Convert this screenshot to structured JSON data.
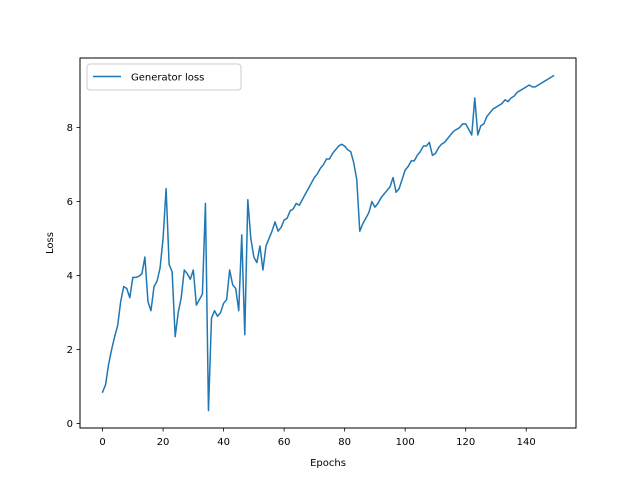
{
  "chart_data": {
    "type": "line",
    "xlabel": "Epochs",
    "ylabel": "Loss",
    "xlim": [
      -7.45,
      156.45
    ],
    "ylim": [
      -0.12,
      9.88
    ],
    "xticks": [
      0,
      20,
      40,
      60,
      80,
      100,
      120,
      140
    ],
    "yticks": [
      0,
      2,
      4,
      6,
      8
    ],
    "grid": false,
    "legend_position": "upper-left",
    "series": [
      {
        "name": "Generator loss",
        "color": "#1f77b4",
        "x": [
          0,
          1,
          2,
          3,
          4,
          5,
          6,
          7,
          8,
          9,
          10,
          11,
          12,
          13,
          14,
          15,
          16,
          17,
          18,
          19,
          20,
          21,
          22,
          23,
          24,
          25,
          26,
          27,
          28,
          29,
          30,
          31,
          32,
          33,
          34,
          35,
          36,
          37,
          38,
          39,
          40,
          41,
          42,
          43,
          44,
          45,
          46,
          47,
          48,
          49,
          50,
          51,
          52,
          53,
          54,
          55,
          56,
          57,
          58,
          59,
          60,
          61,
          62,
          63,
          64,
          65,
          66,
          67,
          68,
          69,
          70,
          71,
          72,
          73,
          74,
          75,
          76,
          77,
          78,
          79,
          80,
          81,
          82,
          83,
          84,
          85,
          86,
          87,
          88,
          89,
          90,
          91,
          92,
          93,
          94,
          95,
          96,
          97,
          98,
          99,
          100,
          101,
          102,
          103,
          104,
          105,
          106,
          107,
          108,
          109,
          110,
          111,
          112,
          113,
          114,
          115,
          116,
          117,
          118,
          119,
          120,
          121,
          122,
          123,
          124,
          125,
          126,
          127,
          128,
          129,
          130,
          131,
          132,
          133,
          134,
          135,
          136,
          137,
          138,
          139,
          140,
          141,
          142,
          143,
          144,
          145,
          146,
          147,
          148,
          149
        ],
        "y": [
          0.85,
          1.05,
          1.6,
          2.0,
          2.35,
          2.65,
          3.3,
          3.7,
          3.65,
          3.4,
          3.95,
          3.95,
          3.98,
          4.05,
          4.5,
          3.3,
          3.05,
          3.7,
          3.85,
          4.2,
          5.0,
          6.35,
          4.3,
          4.1,
          2.35,
          3.0,
          3.4,
          4.15,
          4.05,
          3.9,
          4.15,
          3.2,
          3.35,
          3.5,
          5.95,
          0.35,
          2.85,
          3.05,
          2.9,
          3.0,
          3.25,
          3.35,
          4.15,
          3.75,
          3.65,
          3.05,
          5.1,
          2.4,
          6.05,
          5.0,
          4.5,
          4.35,
          4.8,
          4.15,
          4.8,
          5.0,
          5.2,
          5.45,
          5.2,
          5.3,
          5.5,
          5.55,
          5.75,
          5.8,
          5.95,
          5.9,
          6.05,
          6.2,
          6.35,
          6.5,
          6.65,
          6.75,
          6.9,
          7.0,
          7.15,
          7.15,
          7.3,
          7.4,
          7.5,
          7.55,
          7.5,
          7.4,
          7.35,
          7.05,
          6.6,
          5.2,
          5.4,
          5.55,
          5.7,
          6.0,
          5.85,
          5.95,
          6.1,
          6.2,
          6.3,
          6.4,
          6.65,
          6.25,
          6.35,
          6.6,
          6.85,
          6.95,
          7.1,
          7.1,
          7.25,
          7.35,
          7.5,
          7.5,
          7.6,
          7.25,
          7.3,
          7.45,
          7.55,
          7.6,
          7.7,
          7.8,
          7.9,
          7.95,
          8.0,
          8.1,
          8.1,
          7.95,
          7.8,
          8.8,
          7.8,
          8.05,
          8.1,
          8.3,
          8.4,
          8.5,
          8.55,
          8.6,
          8.65,
          8.75,
          8.7,
          8.8,
          8.85,
          8.95,
          9.0,
          9.05,
          9.1,
          9.15,
          9.1,
          9.1,
          9.15,
          9.2,
          9.25,
          9.3,
          9.35,
          9.4
        ]
      }
    ]
  }
}
